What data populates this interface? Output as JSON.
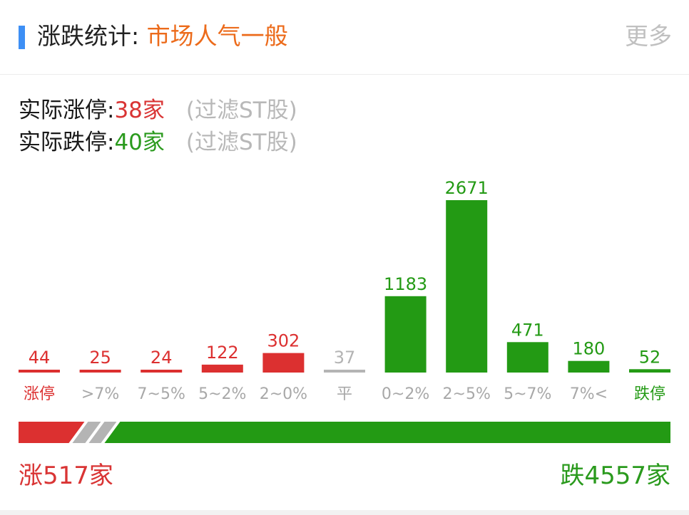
{
  "header": {
    "title": "涨跌统计:",
    "mood": "市场人气一般",
    "more": "更多"
  },
  "stats": {
    "limit_up_label": "实际涨停:",
    "limit_up_value": "38家",
    "limit_down_label": "实际跌停:",
    "limit_down_value": "40家",
    "filter_note": "(过滤ST股)"
  },
  "colors": {
    "up": "#dc3030",
    "down": "#239a14",
    "flat": "#b4b4b4",
    "accent": "#3d8ff5",
    "mood": "#ec6b1b"
  },
  "chart_data": {
    "type": "bar",
    "categories": [
      "涨停",
      ">7%",
      "7~5%",
      "5~2%",
      "2~0%",
      "平",
      "0~2%",
      "2~5%",
      "5~7%",
      "7%<",
      "跌停"
    ],
    "values": [
      44,
      25,
      24,
      122,
      302,
      37,
      1183,
      2671,
      471,
      180,
      52
    ],
    "value_labels": [
      "44",
      "25",
      "24",
      "122",
      "302",
      "37",
      "1183",
      "2671",
      "471",
      "180",
      "52"
    ],
    "directions": [
      "up",
      "up",
      "up",
      "up",
      "up",
      "flat",
      "down",
      "down",
      "down",
      "down",
      "down"
    ],
    "ylim": [
      0,
      2671
    ],
    "grid": false,
    "legend": "none"
  },
  "summary": {
    "up_text": "涨517家",
    "down_text": "跌4557家",
    "up_count": 517,
    "flat_count": 37,
    "down_count": 4557
  }
}
